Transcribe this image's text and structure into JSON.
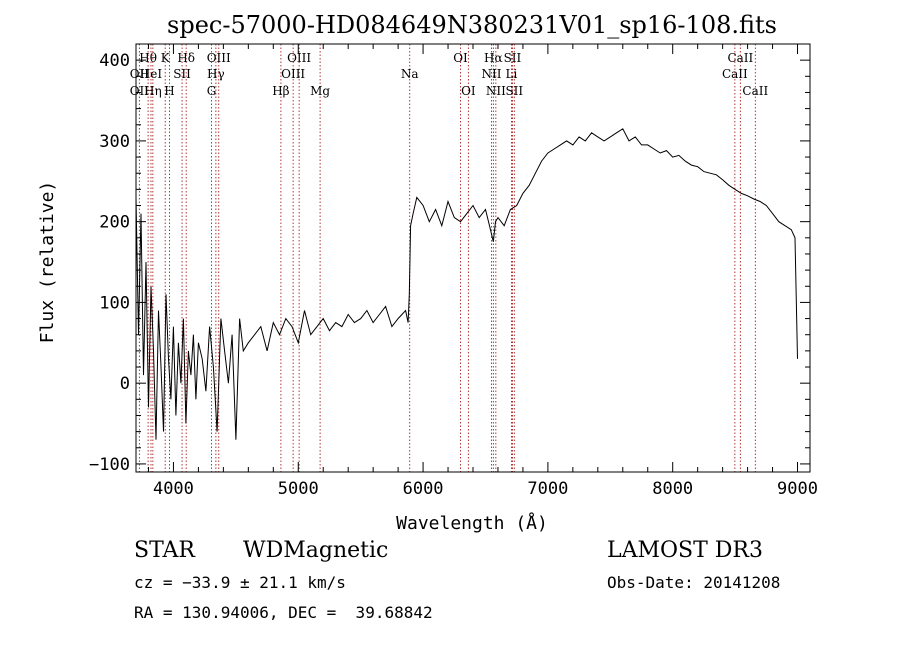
{
  "chart_data": {
    "type": "line",
    "title": "spec-57000-HD084649N380231V01_sp16-108.fits",
    "xlabel": "Wavelength (Å)",
    "ylabel": "Flux (relative)",
    "xlim": [
      3700,
      9100
    ],
    "ylim": [
      -110,
      420
    ],
    "xticks": [
      4000,
      5000,
      6000,
      7000,
      8000,
      9000
    ],
    "yticks": [
      -100,
      0,
      100,
      200,
      300,
      400
    ],
    "xtick_labels": [
      "4000",
      "5000",
      "6000",
      "7000",
      "8000",
      "9000"
    ],
    "ytick_labels": [
      "−100",
      "0",
      "100",
      "200",
      "300",
      "400"
    ],
    "grid": false,
    "series": [
      {
        "name": "spectrum",
        "x": [
          3700,
          3720,
          3740,
          3760,
          3780,
          3800,
          3820,
          3840,
          3860,
          3880,
          3900,
          3920,
          3940,
          3960,
          3980,
          4000,
          4020,
          4040,
          4060,
          4080,
          4100,
          4120,
          4140,
          4160,
          4180,
          4200,
          4230,
          4260,
          4290,
          4320,
          4350,
          4380,
          4410,
          4440,
          4470,
          4500,
          4530,
          4560,
          4600,
          4650,
          4700,
          4750,
          4800,
          4850,
          4900,
          4950,
          5000,
          5050,
          5100,
          5150,
          5200,
          5250,
          5300,
          5350,
          5400,
          5450,
          5500,
          5550,
          5600,
          5650,
          5700,
          5750,
          5800,
          5830,
          5860,
          5880,
          5890,
          5900,
          5920,
          5950,
          6000,
          6050,
          6100,
          6150,
          6200,
          6250,
          6300,
          6350,
          6400,
          6450,
          6500,
          6540,
          6563,
          6580,
          6600,
          6650,
          6700,
          6750,
          6800,
          6850,
          6900,
          6950,
          7000,
          7050,
          7100,
          7150,
          7200,
          7250,
          7300,
          7350,
          7400,
          7450,
          7500,
          7550,
          7600,
          7650,
          7700,
          7750,
          7800,
          7850,
          7900,
          7950,
          8000,
          8050,
          8100,
          8150,
          8200,
          8250,
          8300,
          8350,
          8400,
          8450,
          8500,
          8550,
          8600,
          8650,
          8700,
          8750,
          8800,
          8850,
          8900,
          8950,
          8980,
          9000
        ],
        "y": [
          230,
          60,
          210,
          10,
          150,
          -30,
          120,
          40,
          -70,
          90,
          20,
          -60,
          110,
          30,
          -20,
          70,
          -40,
          50,
          0,
          80,
          -50,
          40,
          10,
          60,
          -20,
          50,
          30,
          -10,
          70,
          20,
          -60,
          80,
          40,
          0,
          60,
          -70,
          80,
          40,
          50,
          60,
          70,
          40,
          75,
          60,
          80,
          70,
          50,
          90,
          60,
          70,
          80,
          65,
          75,
          70,
          85,
          75,
          80,
          90,
          75,
          85,
          95,
          70,
          80,
          85,
          90,
          75,
          110,
          195,
          210,
          230,
          220,
          200,
          215,
          195,
          225,
          205,
          200,
          210,
          220,
          205,
          215,
          190,
          175,
          200,
          205,
          195,
          215,
          220,
          235,
          245,
          260,
          275,
          285,
          290,
          295,
          300,
          295,
          305,
          300,
          310,
          305,
          300,
          305,
          310,
          315,
          300,
          305,
          295,
          295,
          290,
          285,
          288,
          280,
          282,
          275,
          270,
          268,
          262,
          260,
          258,
          252,
          245,
          240,
          235,
          232,
          228,
          225,
          220,
          210,
          200,
          195,
          190,
          180,
          30
        ]
      }
    ],
    "lines": [
      {
        "name": "OII",
        "x": 3727,
        "row": 2
      },
      {
        "name": "OII",
        "x": 3727,
        "row": 3
      },
      {
        "name": "Hθ",
        "x": 3797,
        "row": 1
      },
      {
        "name": "HeI",
        "x": 3820,
        "row": 2
      },
      {
        "name": "Hη",
        "x": 3835,
        "row": 3
      },
      {
        "name": "K",
        "x": 3934,
        "row": 1
      },
      {
        "name": "H",
        "x": 3968,
        "row": 3
      },
      {
        "name": "SII",
        "x": 4069,
        "row": 2
      },
      {
        "name": "Hδ",
        "x": 4102,
        "row": 1
      },
      {
        "name": "OIII",
        "x": 4363,
        "row": 1
      },
      {
        "name": "Hγ",
        "x": 4340,
        "row": 2
      },
      {
        "name": "G",
        "x": 4305,
        "row": 3
      },
      {
        "name": "Hβ",
        "x": 4861,
        "row": 3
      },
      {
        "name": "OIII",
        "x": 5007,
        "row": 1
      },
      {
        "name": "OIII",
        "x": 4959,
        "row": 2
      },
      {
        "name": "Mg",
        "x": 5175,
        "row": 3
      },
      {
        "name": "Na",
        "x": 5893,
        "row": 2
      },
      {
        "name": "OI",
        "x": 6300,
        "row": 1
      },
      {
        "name": "OI",
        "x": 6363,
        "row": 3
      },
      {
        "name": "Hα",
        "x": 6563,
        "row": 1
      },
      {
        "name": "NII",
        "x": 6548,
        "row": 2
      },
      {
        "name": "NII",
        "x": 6583,
        "row": 3
      },
      {
        "name": "SII",
        "x": 6716,
        "row": 1
      },
      {
        "name": "Li",
        "x": 6708,
        "row": 2
      },
      {
        "name": "SII",
        "x": 6731,
        "row": 3
      },
      {
        "name": "CaII",
        "x": 8542,
        "row": 1
      },
      {
        "name": "CaII",
        "x": 8498,
        "row": 2
      },
      {
        "name": "CaII",
        "x": 8662,
        "row": 3
      }
    ]
  },
  "footer": {
    "object_class": "STAR",
    "subclass": "WDMagnetic",
    "survey": "LAMOST DR3",
    "cz": "cz = −33.9 ± 21.1 km/s",
    "obs_date": "Obs-Date: 20141208",
    "coords": "RA = 130.94006, DEC =  39.68842"
  },
  "colors": {
    "line_marker": "#aa2222",
    "axis": "#000000",
    "spectrum": "#000000"
  }
}
